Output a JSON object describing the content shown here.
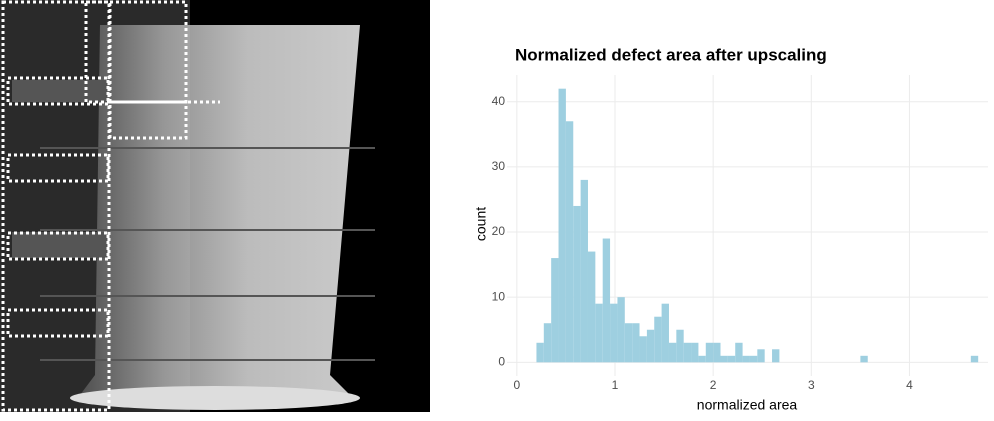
{
  "chart_data": {
    "type": "histogram",
    "title": "Normalized defect area after upscaling",
    "x_label": "normalized area",
    "y_label": "count",
    "color": "#9ecfe0",
    "grid": true,
    "bins": [
      0.2,
      0.275,
      0.35,
      0.425,
      0.5,
      0.575,
      0.65,
      0.725,
      0.8,
      0.875,
      0.95,
      1.025,
      1.1,
      1.175,
      1.25,
      1.325,
      1.4,
      1.475,
      1.55,
      1.625,
      1.7,
      1.775,
      1.85,
      1.925,
      2,
      2.075,
      2.15,
      2.225,
      2.3,
      2.375,
      2.45,
      2.525,
      2.6,
      2.675,
      2.75,
      2.825,
      2.9,
      2.975,
      3.05,
      3.125,
      3.2,
      3.275,
      3.35,
      3.425,
      3.5,
      3.575,
      3.65,
      3.725,
      3.8,
      3.875,
      3.95,
      4.025,
      4.1,
      4.175,
      4.25,
      4.325,
      4.4,
      4.475,
      4.55,
      4.625,
      4.7
    ],
    "values": [
      3,
      6,
      16,
      42,
      37,
      24,
      28,
      17,
      9,
      19,
      9,
      10,
      6,
      6,
      4,
      5,
      7,
      9,
      3,
      5,
      3,
      3,
      1,
      3,
      3,
      1,
      1,
      3,
      1,
      1,
      2,
      0,
      2,
      0,
      0,
      0,
      0,
      0,
      0,
      0,
      0,
      0,
      0,
      0,
      1,
      0,
      0,
      0,
      0,
      0,
      0,
      0,
      0,
      0,
      0,
      0,
      0,
      0,
      0,
      1
    ],
    "xlim": [
      -0.1,
      4.8
    ],
    "ylim": [
      -2.1,
      44.1
    ],
    "xticks": [
      0,
      1,
      2,
      3,
      4
    ],
    "yticks": [
      0,
      10,
      20,
      30,
      40
    ]
  }
}
